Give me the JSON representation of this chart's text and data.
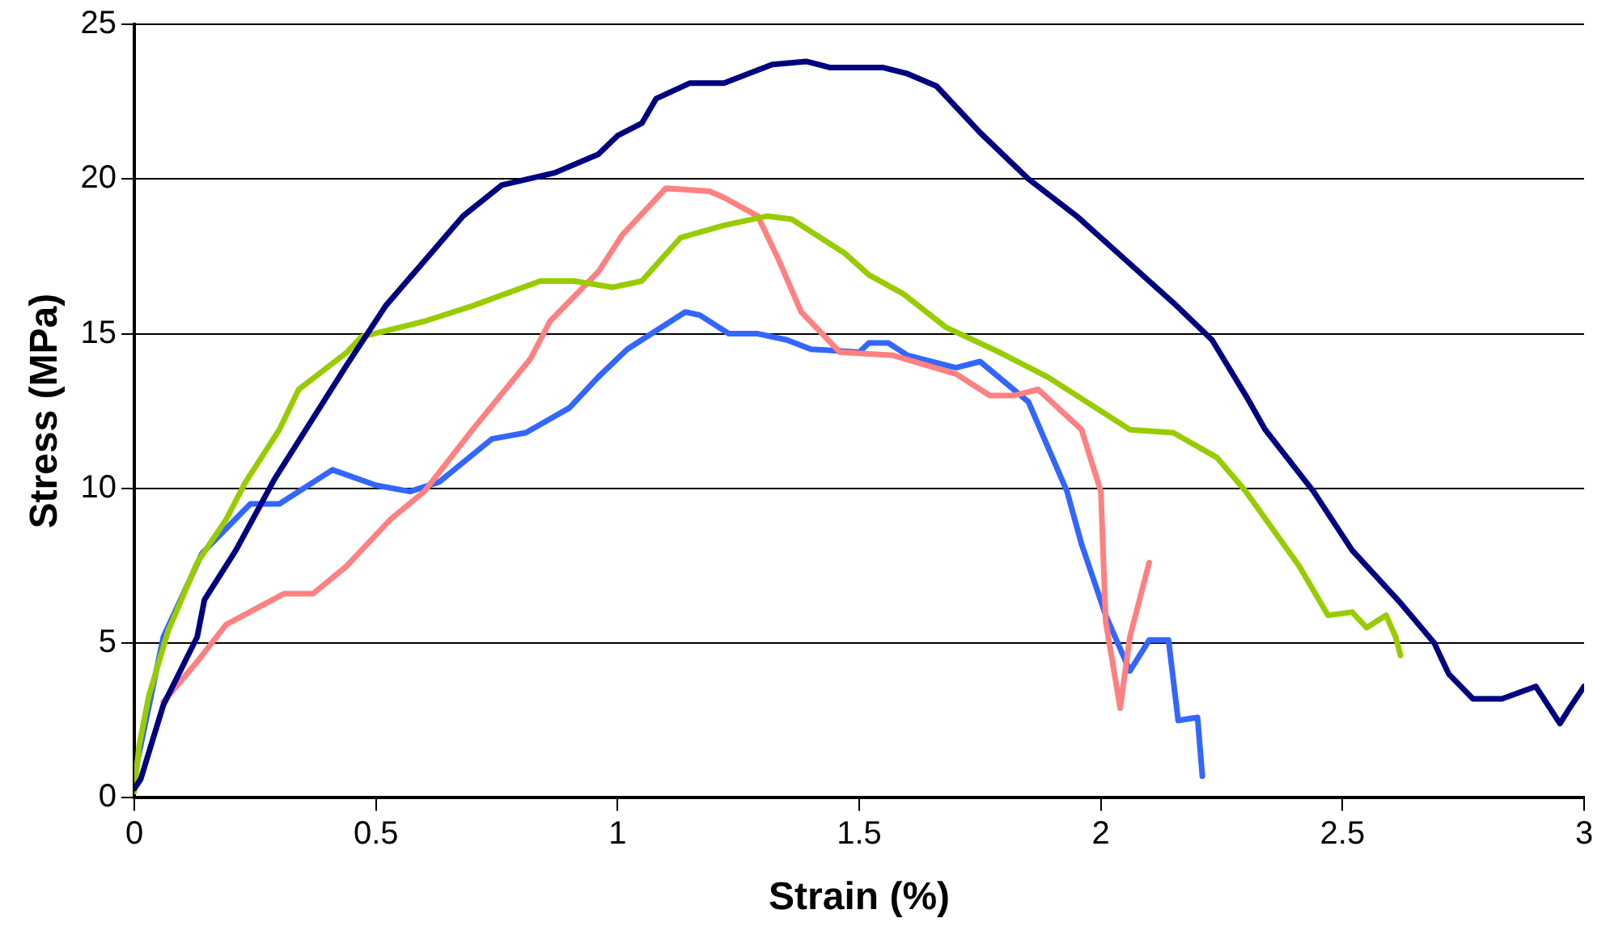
{
  "chart_data": {
    "type": "line",
    "xlabel": "Strain (%)",
    "ylabel": "Stress (MPa)",
    "xlim": [
      0,
      3
    ],
    "xticks": [
      0,
      0.5,
      1,
      1.5,
      2,
      2.5,
      3
    ],
    "ylim": [
      0,
      25
    ],
    "yticks": [
      0,
      5,
      10,
      15,
      20,
      25
    ],
    "grid": "y",
    "legend": false,
    "marker": "none",
    "line_style": "solid",
    "series": [
      {
        "color": "#000080",
        "x": [
          0,
          0.013,
          0.06,
          0.13,
          0.145,
          0.21,
          0.29,
          0.44,
          0.52,
          0.68,
          0.76,
          0.87,
          0.96,
          1.0,
          1.05,
          1.08,
          1.15,
          1.22,
          1.32,
          1.39,
          1.44,
          1.5,
          1.55,
          1.6,
          1.66,
          1.75,
          1.85,
          1.95,
          2.05,
          2.15,
          2.23,
          2.3,
          2.34,
          2.44,
          2.52,
          2.62,
          2.69,
          2.72,
          2.77,
          2.83,
          2.9,
          2.95,
          2.97,
          3.0
        ],
        "values": [
          0.3,
          0.6,
          3.0,
          5.2,
          6.4,
          8.0,
          10.3,
          14.0,
          15.9,
          18.8,
          19.8,
          20.2,
          20.8,
          21.4,
          21.8,
          22.6,
          23.1,
          23.1,
          23.7,
          23.8,
          23.6,
          23.6,
          23.6,
          23.4,
          23.0,
          21.5,
          20.0,
          18.8,
          17.4,
          16.0,
          14.8,
          13.0,
          11.9,
          9.9,
          8.0,
          6.3,
          5.0,
          4.0,
          3.2,
          3.2,
          3.6,
          2.4,
          2.9,
          3.6
        ]
      },
      {
        "color": "#99cc00",
        "x": [
          0,
          0.01,
          0.03,
          0.07,
          0.13,
          0.19,
          0.23,
          0.3,
          0.34,
          0.44,
          0.47,
          0.6,
          0.7,
          0.84,
          0.91,
          0.99,
          1.05,
          1.13,
          1.22,
          1.31,
          1.36,
          1.45,
          1.47,
          1.52,
          1.59,
          1.68,
          1.79,
          1.89,
          1.96,
          2.06,
          2.15,
          2.24,
          2.3,
          2.41,
          2.47,
          2.52,
          2.55,
          2.59,
          2.61,
          2.62
        ],
        "values": [
          0.2,
          1.7,
          3.3,
          5.4,
          7.6,
          9.0,
          10.2,
          11.9,
          13.2,
          14.4,
          14.9,
          15.4,
          15.9,
          16.7,
          16.7,
          16.5,
          16.7,
          18.1,
          18.5,
          18.8,
          18.7,
          17.8,
          17.6,
          16.9,
          16.3,
          15.2,
          14.4,
          13.6,
          12.9,
          11.9,
          11.8,
          11.0,
          9.9,
          7.5,
          5.9,
          6.0,
          5.5,
          5.9,
          5.2,
          4.6
        ]
      },
      {
        "color": "#ff8080",
        "x": [
          0.06,
          0.13,
          0.19,
          0.31,
          0.37,
          0.44,
          0.53,
          0.6,
          0.7,
          0.82,
          0.86,
          0.96,
          1.01,
          1.1,
          1.19,
          1.22,
          1.29,
          1.33,
          1.38,
          1.46,
          1.57,
          1.7,
          1.77,
          1.82,
          1.87,
          1.96,
          2.0,
          2.01,
          2.04,
          2.06,
          2.1
        ],
        "values": [
          3.1,
          4.4,
          5.6,
          6.6,
          6.6,
          7.5,
          9.0,
          9.9,
          11.9,
          14.2,
          15.4,
          17.0,
          18.2,
          19.7,
          19.6,
          19.4,
          18.8,
          17.5,
          15.7,
          14.4,
          14.3,
          13.7,
          13.0,
          13.0,
          13.2,
          11.9,
          9.9,
          5.7,
          2.9,
          5.2,
          7.6
        ]
      },
      {
        "color": "#3366ff",
        "x": [
          0,
          0.06,
          0.14,
          0.24,
          0.3,
          0.41,
          0.5,
          0.57,
          0.63,
          0.74,
          0.81,
          0.9,
          0.96,
          1.02,
          1.14,
          1.17,
          1.23,
          1.29,
          1.35,
          1.4,
          1.5,
          1.52,
          1.56,
          1.6,
          1.7,
          1.75,
          1.85,
          1.93,
          1.96,
          2.01,
          2.06,
          2.1,
          2.14,
          2.16,
          2.2,
          2.21
        ],
        "values": [
          0.7,
          5.2,
          7.9,
          9.5,
          9.5,
          10.6,
          10.1,
          9.9,
          10.2,
          11.6,
          11.8,
          12.6,
          13.6,
          14.5,
          15.7,
          15.6,
          15.0,
          15.0,
          14.8,
          14.5,
          14.4,
          14.7,
          14.7,
          14.3,
          13.9,
          14.1,
          12.8,
          9.9,
          8.2,
          5.9,
          4.1,
          5.1,
          5.1,
          2.5,
          2.6,
          0.7
        ]
      }
    ]
  }
}
